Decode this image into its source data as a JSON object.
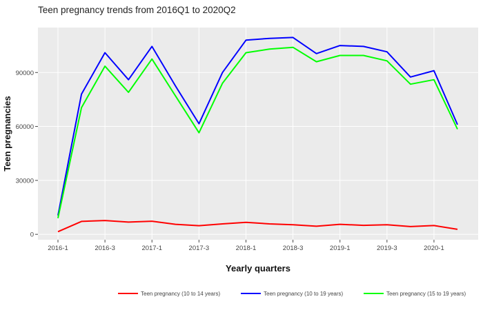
{
  "chart_data": {
    "type": "line",
    "title": "Teen pregnancy trends from 2016Q1 to 2020Q2",
    "xlabel": "Yearly quarters",
    "ylabel": "Teen pregnancies",
    "x": [
      "2016-1",
      "2016-2",
      "2016-3",
      "2016-4",
      "2017-1",
      "2017-2",
      "2017-3",
      "2017-4",
      "2018-1",
      "2018-2",
      "2018-3",
      "2018-4",
      "2019-1",
      "2019-2",
      "2019-3",
      "2019-4",
      "2020-1",
      "2020-2"
    ],
    "x_tick_labels": [
      "2016-1",
      "2016-3",
      "2017-1",
      "2017-3",
      "2018-1",
      "2018-3",
      "2019-1",
      "2019-3",
      "2020-1"
    ],
    "y_ticks": [
      0,
      30000,
      60000,
      90000
    ],
    "y_tick_labels": [
      "0",
      "30000",
      "60000",
      "90000"
    ],
    "ylim": [
      -3000,
      115000
    ],
    "grid": true,
    "legend_position": "bottom",
    "series": [
      {
        "name": "Teen pregnancy (10 to 14 years)",
        "color": "#ff0000",
        "values": [
          1500,
          7200,
          7700,
          6800,
          7300,
          5600,
          4800,
          5800,
          6700,
          5800,
          5300,
          4500,
          5600,
          5000,
          5300,
          4300,
          4900,
          2800
        ]
      },
      {
        "name": "Teen pregnancy (10 to 19 years)",
        "color": "#0000ff",
        "values": [
          10500,
          78000,
          101000,
          86000,
          104500,
          82500,
          61500,
          90000,
          108000,
          109000,
          109500,
          100500,
          105000,
          104500,
          101500,
          87500,
          91000,
          61000
        ]
      },
      {
        "name": "Teen pregnancy (15 to 19 years)",
        "color": "#00ff00",
        "values": [
          9000,
          70500,
          93500,
          79000,
          97500,
          77000,
          56500,
          84000,
          101000,
          103000,
          104000,
          96000,
          99500,
          99500,
          96500,
          83500,
          86000,
          58500
        ]
      }
    ]
  }
}
